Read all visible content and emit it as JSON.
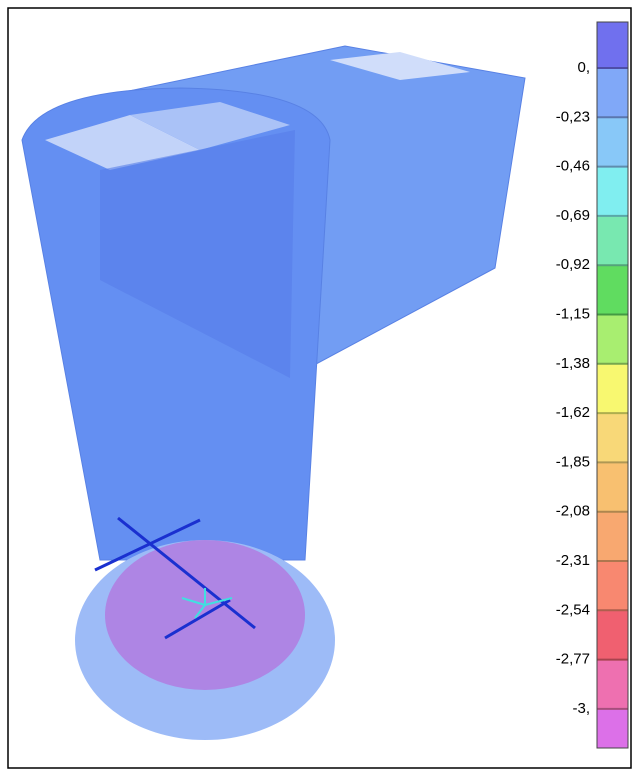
{
  "legend": {
    "labels": [
      "0,",
      "-0,23",
      "-0,46",
      "-0,69",
      "-0,92",
      "-1,15",
      "-1,38",
      "-1,62",
      "-1,85",
      "-2,08",
      "-2,31",
      "-2,54",
      "-2,77",
      "-3,"
    ],
    "colors": [
      "#7070ee",
      "#80a8f8",
      "#88c8f8",
      "#80eef0",
      "#78e8b0",
      "#60dc60",
      "#a8ee70",
      "#f8f870",
      "#f8d878",
      "#f8c070",
      "#f8a870",
      "#f88870",
      "#f06070",
      "#ee70b0",
      "#dc70e8"
    ]
  }
}
